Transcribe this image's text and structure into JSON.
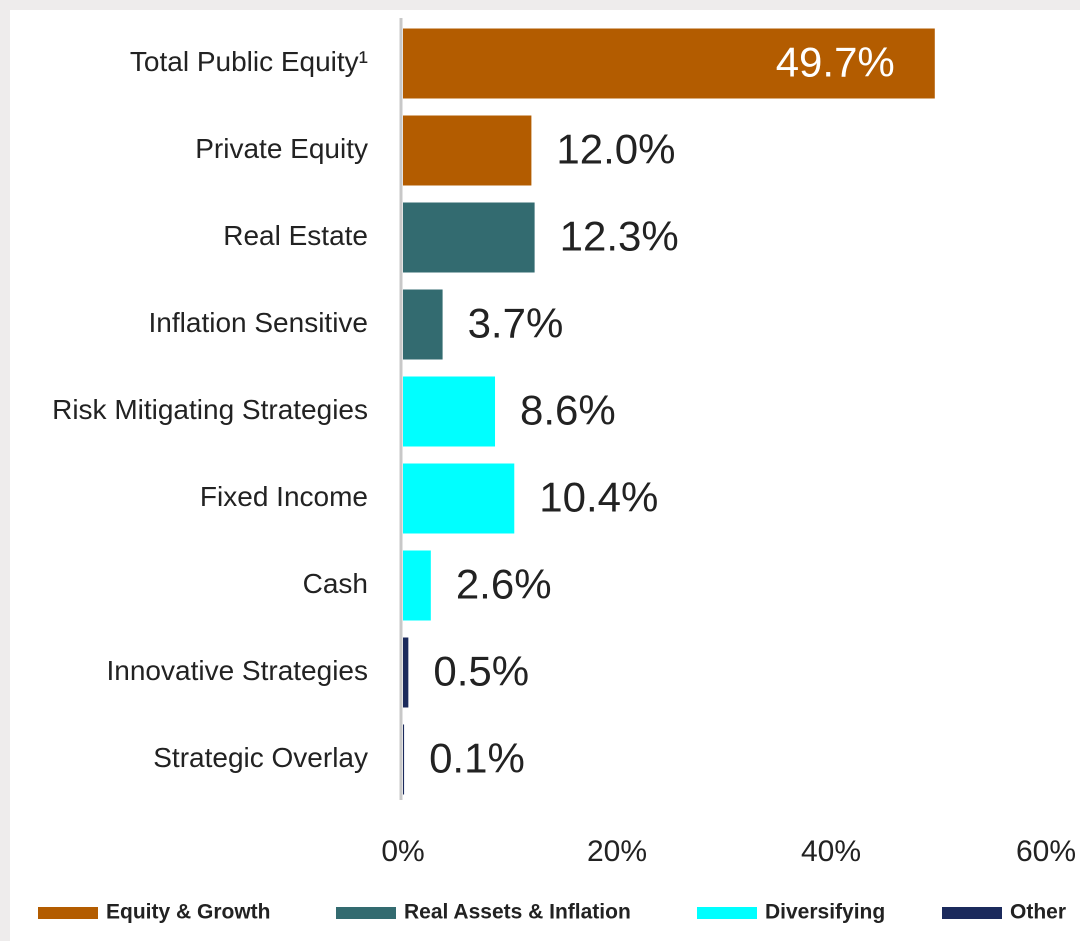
{
  "chart_data": {
    "type": "bar",
    "orientation": "horizontal",
    "categories": [
      "Total Public Equity¹",
      "Private Equity",
      "Real Estate",
      "Inflation Sensitive",
      "Risk Mitigating Strategies",
      "Fixed Income",
      "Cash",
      "Innovative Strategies",
      "Strategic Overlay"
    ],
    "series": [
      {
        "name": "Equity & Growth",
        "color": "#b35c00",
        "values": [
          49.7,
          12.0,
          null,
          null,
          null,
          null,
          null,
          null,
          null
        ],
        "value_labels": [
          "49.7%",
          "12.0%",
          null,
          null,
          null,
          null,
          null,
          null,
          null
        ]
      },
      {
        "name": "Real Assets & Inflation",
        "color": "#336b70",
        "values": [
          null,
          null,
          12.3,
          3.7,
          null,
          null,
          null,
          null,
          null
        ],
        "value_labels": [
          null,
          null,
          "12.3%",
          "3.7%",
          null,
          null,
          null,
          null,
          null
        ]
      },
      {
        "name": "Diversifying",
        "color": "#00ffff",
        "values": [
          null,
          null,
          null,
          null,
          8.6,
          10.4,
          2.6,
          null,
          null
        ],
        "value_labels": [
          null,
          null,
          null,
          null,
          "8.6%",
          "10.4%",
          "2.6%",
          null,
          null
        ]
      },
      {
        "name": "Other",
        "color": "#1b2a5c",
        "values": [
          null,
          null,
          null,
          null,
          null,
          null,
          null,
          0.5,
          0.1
        ],
        "value_labels": [
          null,
          null,
          null,
          null,
          null,
          null,
          null,
          "0.5%",
          "0.1%"
        ]
      }
    ],
    "xlim": [
      0,
      60
    ],
    "xticks": [
      {
        "value": 0,
        "label": "0%"
      },
      {
        "value": 20,
        "label": "20%"
      },
      {
        "value": 40,
        "label": "40%"
      },
      {
        "value": 60,
        "label": "60%"
      }
    ],
    "grid": false,
    "legend": "bottom"
  }
}
